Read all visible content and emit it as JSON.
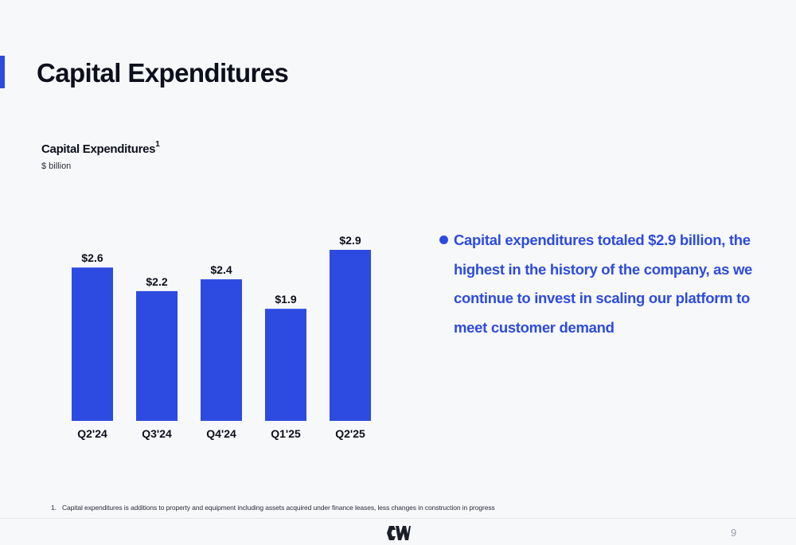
{
  "slide": {
    "title": "Capital Expenditures",
    "page_number": "9",
    "accent_color": "#2d4be0",
    "logo_icon": "company-logo-icon"
  },
  "chart_header": {
    "title": "Capital Expenditures",
    "title_superscript": "1",
    "units": "$ billion"
  },
  "chart_data": {
    "type": "bar",
    "title": "Capital Expenditures",
    "ylabel": "$ billion",
    "xlabel": "",
    "categories": [
      "Q2'24",
      "Q3'24",
      "Q4'24",
      "Q1'25",
      "Q2'25"
    ],
    "values": [
      2.6,
      2.2,
      2.4,
      1.9,
      2.9
    ],
    "value_labels": [
      "$2.6",
      "$2.2",
      "$2.4",
      "$1.9",
      "$2.9"
    ],
    "ylim": [
      0,
      2.9
    ],
    "bar_color": "#2d4be0",
    "grid": false,
    "legend": "none"
  },
  "commentary": {
    "bullet": "Capital  expenditures totaled $2.9 billion, the highest in the history of the company, as we continue to invest in scaling our platform to meet customer demand"
  },
  "footnote": {
    "number": "1.",
    "text": "Capital expenditures is additions to property and equipment including assets acquired under finance leases, less changes in construction in progress"
  }
}
